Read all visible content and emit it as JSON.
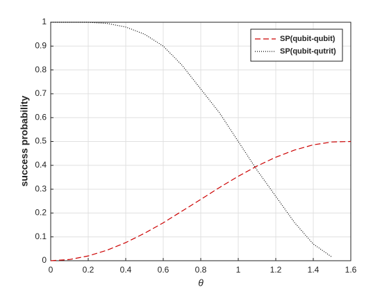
{
  "chart_data": {
    "type": "line",
    "xlabel": "θ",
    "ylabel": "success probability",
    "x": [
      0,
      0.1,
      0.2,
      0.3,
      0.4,
      0.5,
      0.6,
      0.7,
      0.8,
      0.9,
      1.0,
      1.1,
      1.2,
      1.3,
      1.4,
      1.5,
      1.6
    ],
    "series": [
      {
        "name": "SP(qubit-qubit)",
        "color": "#cc0000",
        "dash": "8,4",
        "values": [
          0,
          0.005,
          0.02,
          0.044,
          0.076,
          0.115,
          0.159,
          0.208,
          0.257,
          0.307,
          0.354,
          0.397,
          0.434,
          0.464,
          0.486,
          0.498,
          0.5
        ]
      },
      {
        "name": "SP(qubit-qutrit)",
        "color": "#000000",
        "dash": "1,2",
        "values": [
          1,
          1,
          1,
          0.995,
          0.98,
          0.95,
          0.9,
          0.82,
          0.72,
          0.62,
          0.5,
          0.38,
          0.27,
          0.16,
          0.07,
          0.015,
          null
        ]
      }
    ],
    "xlim": [
      0,
      1.6
    ],
    "xticks": [
      0,
      0.2,
      0.4,
      0.6,
      0.8,
      1,
      1.2,
      1.4,
      1.6
    ],
    "ylim": [
      0,
      1
    ],
    "yticks": [
      0,
      0.1,
      0.2,
      0.3,
      0.4,
      0.5,
      0.6,
      0.7,
      0.8,
      0.9,
      1
    ],
    "grid": true,
    "legend": "upper right"
  }
}
